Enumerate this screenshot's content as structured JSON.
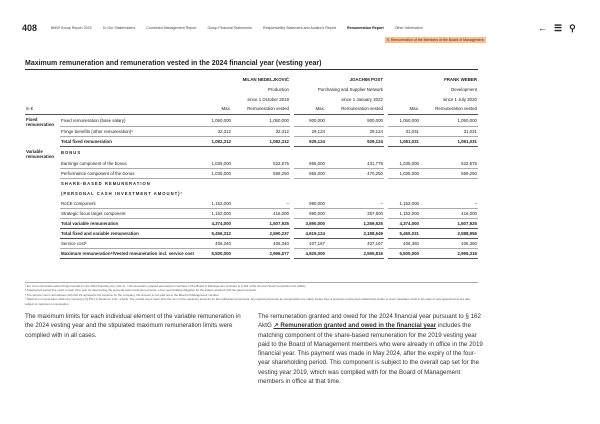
{
  "header": {
    "page_number": "408",
    "nav": [
      "BMW Group Report 2024",
      "To Our Stakeholders",
      "Combined Management Report",
      "Group Financial Statements",
      "Responsibility Statement and Auditor's Report",
      "Remuneration Report",
      "Other Information"
    ],
    "active": "Remuneration Report",
    "breadcrumb": "5. Remuneration of the Members of the Board of Management",
    "icons": [
      "back-arrow-icon",
      "menu-icon",
      "search-icon"
    ]
  },
  "title": "Maximum remuneration and remuneration vested in the 2024 financial year (vesting year)",
  "table": {
    "members": [
      {
        "name": "MILAN NEDELJKOVIĆ",
        "function": "Production",
        "since": "since 1 October 2019"
      },
      {
        "name": "JOACHIM POST",
        "function": "Purchasing and Supplier Network",
        "since": "since 1 January 2022"
      },
      {
        "name": "FRANK WEBER",
        "function": "Development",
        "since": "since 1 July 2020"
      }
    ],
    "unit": "in €",
    "col_max": "Max.",
    "col_vested": "Remuneration vested",
    "group_fixed": "Fixed remuneration",
    "group_variable": "Variable remuneration",
    "bonus_heading": "BONUS",
    "share_heading_1": "SHARE-BASED REMUNERATION",
    "share_heading_2": "(PERSONAL CASH INVESTMENT AMOUNT)²",
    "rows": [
      {
        "label": "Fixed remuneration (base salary)",
        "v": [
          "1,050,000",
          "1,050,000",
          "900,000",
          "900,000",
          "1,050,000",
          "1,050,000"
        ]
      },
      {
        "label": "Fringe benefits (other remuneration)¹",
        "v": [
          "32,312",
          "32,312",
          "29,124",
          "29,124",
          "31,031",
          "31,031"
        ]
      },
      {
        "label": "Total fixed remuneration",
        "v": [
          "1,082,312",
          "1,082,312",
          "929,124",
          "929,124",
          "1,081,031",
          "1,081,031"
        ]
      },
      {
        "label": "Earnings component of the bonus",
        "v": [
          "1,035,000",
          "522,675",
          "855,000",
          "431,775",
          "1,035,000",
          "522,675"
        ]
      },
      {
        "label": "Performance component of the bonus",
        "v": [
          "1,035,000",
          "569,250",
          "855,000",
          "470,250",
          "1,035,000",
          "569,250"
        ]
      },
      {
        "label": "RoCE component",
        "v": [
          "1,152,000",
          "–",
          "990,000",
          "–",
          "1,152,000",
          "–"
        ]
      },
      {
        "label": "Strategic focus target component",
        "v": [
          "1,152,000",
          "416,000",
          "990,000",
          "357,500",
          "1,152,000",
          "416,000"
        ]
      },
      {
        "label": "Total variable remuneration",
        "v": [
          "4,374,000",
          "1,507,925",
          "3,690,000",
          "1,259,525",
          "4,374,000",
          "1,507,925"
        ]
      },
      {
        "label": "Total fixed and variable remuneration",
        "v": [
          "5,456,312",
          "2,590,237",
          "4,619,124",
          "2,188,649",
          "5,455,031",
          "2,588,956"
        ]
      },
      {
        "label": "Service cost³",
        "v": [
          "406,340",
          "406,340",
          "407,167",
          "407,167",
          "406,360",
          "406,360"
        ]
      },
      {
        "label": "Maximum remuneration⁴/Vested remuneration incl. service cost",
        "v": [
          "5,500,000",
          "2,996,577",
          "4,925,000",
          "2,595,816",
          "5,500,000",
          "2,995,316"
        ]
      }
    ]
  },
  "footnotes": [
    "¹ For more information about fringe benefits for the 2024 financial year, refer to ↗ Remuneration granted and owed to members of the Board of Management pursuant to § 162 of the German Stock Corporation Act (AktG).",
    "² Assessment period five years in total: One year for determining the personal cash investment amount, a four-year holding obligation for the shares acquired with the payout amount.",
    "³ The service cost in accordance with IAS 19 represents the expense for the company; this amount is not paid out to the Board of Management member.",
    "⁴ Maximum remuneration within the meaning of § 87a (1) Sentence 2 No. 1 AktG. The overall cap is lower than the sum of the maximum amounts for the individual components. Any special payments as compensation for salary losses from a previous employment relationship and/or to cover relocation costs in the case of new appointments are also subject to maximum remuneration."
  ],
  "body_left": "The maximum limits for each individual element of the variable remuneration in the 2024 vesting year and the stipulated maximum remuneration limits were complied with in all cases.",
  "body_right_1": "The remuneration granted and owed for the 2024 financial year pursuant to § 162 AktG ",
  "body_right_link": "↗ Remuneration granted and owed in the financial year",
  "body_right_2": " includes the matching component of the share-based remuneration for the 2019 vesting year paid to the Board of Management members who were already in office in the 2019 financial year. This payment was made in May 2024, after the expiry of the four-year shareholding period. This component is subject to the overall cap set for the vesting year 2019, which was complied with for the Board of Management members in office at that time."
}
